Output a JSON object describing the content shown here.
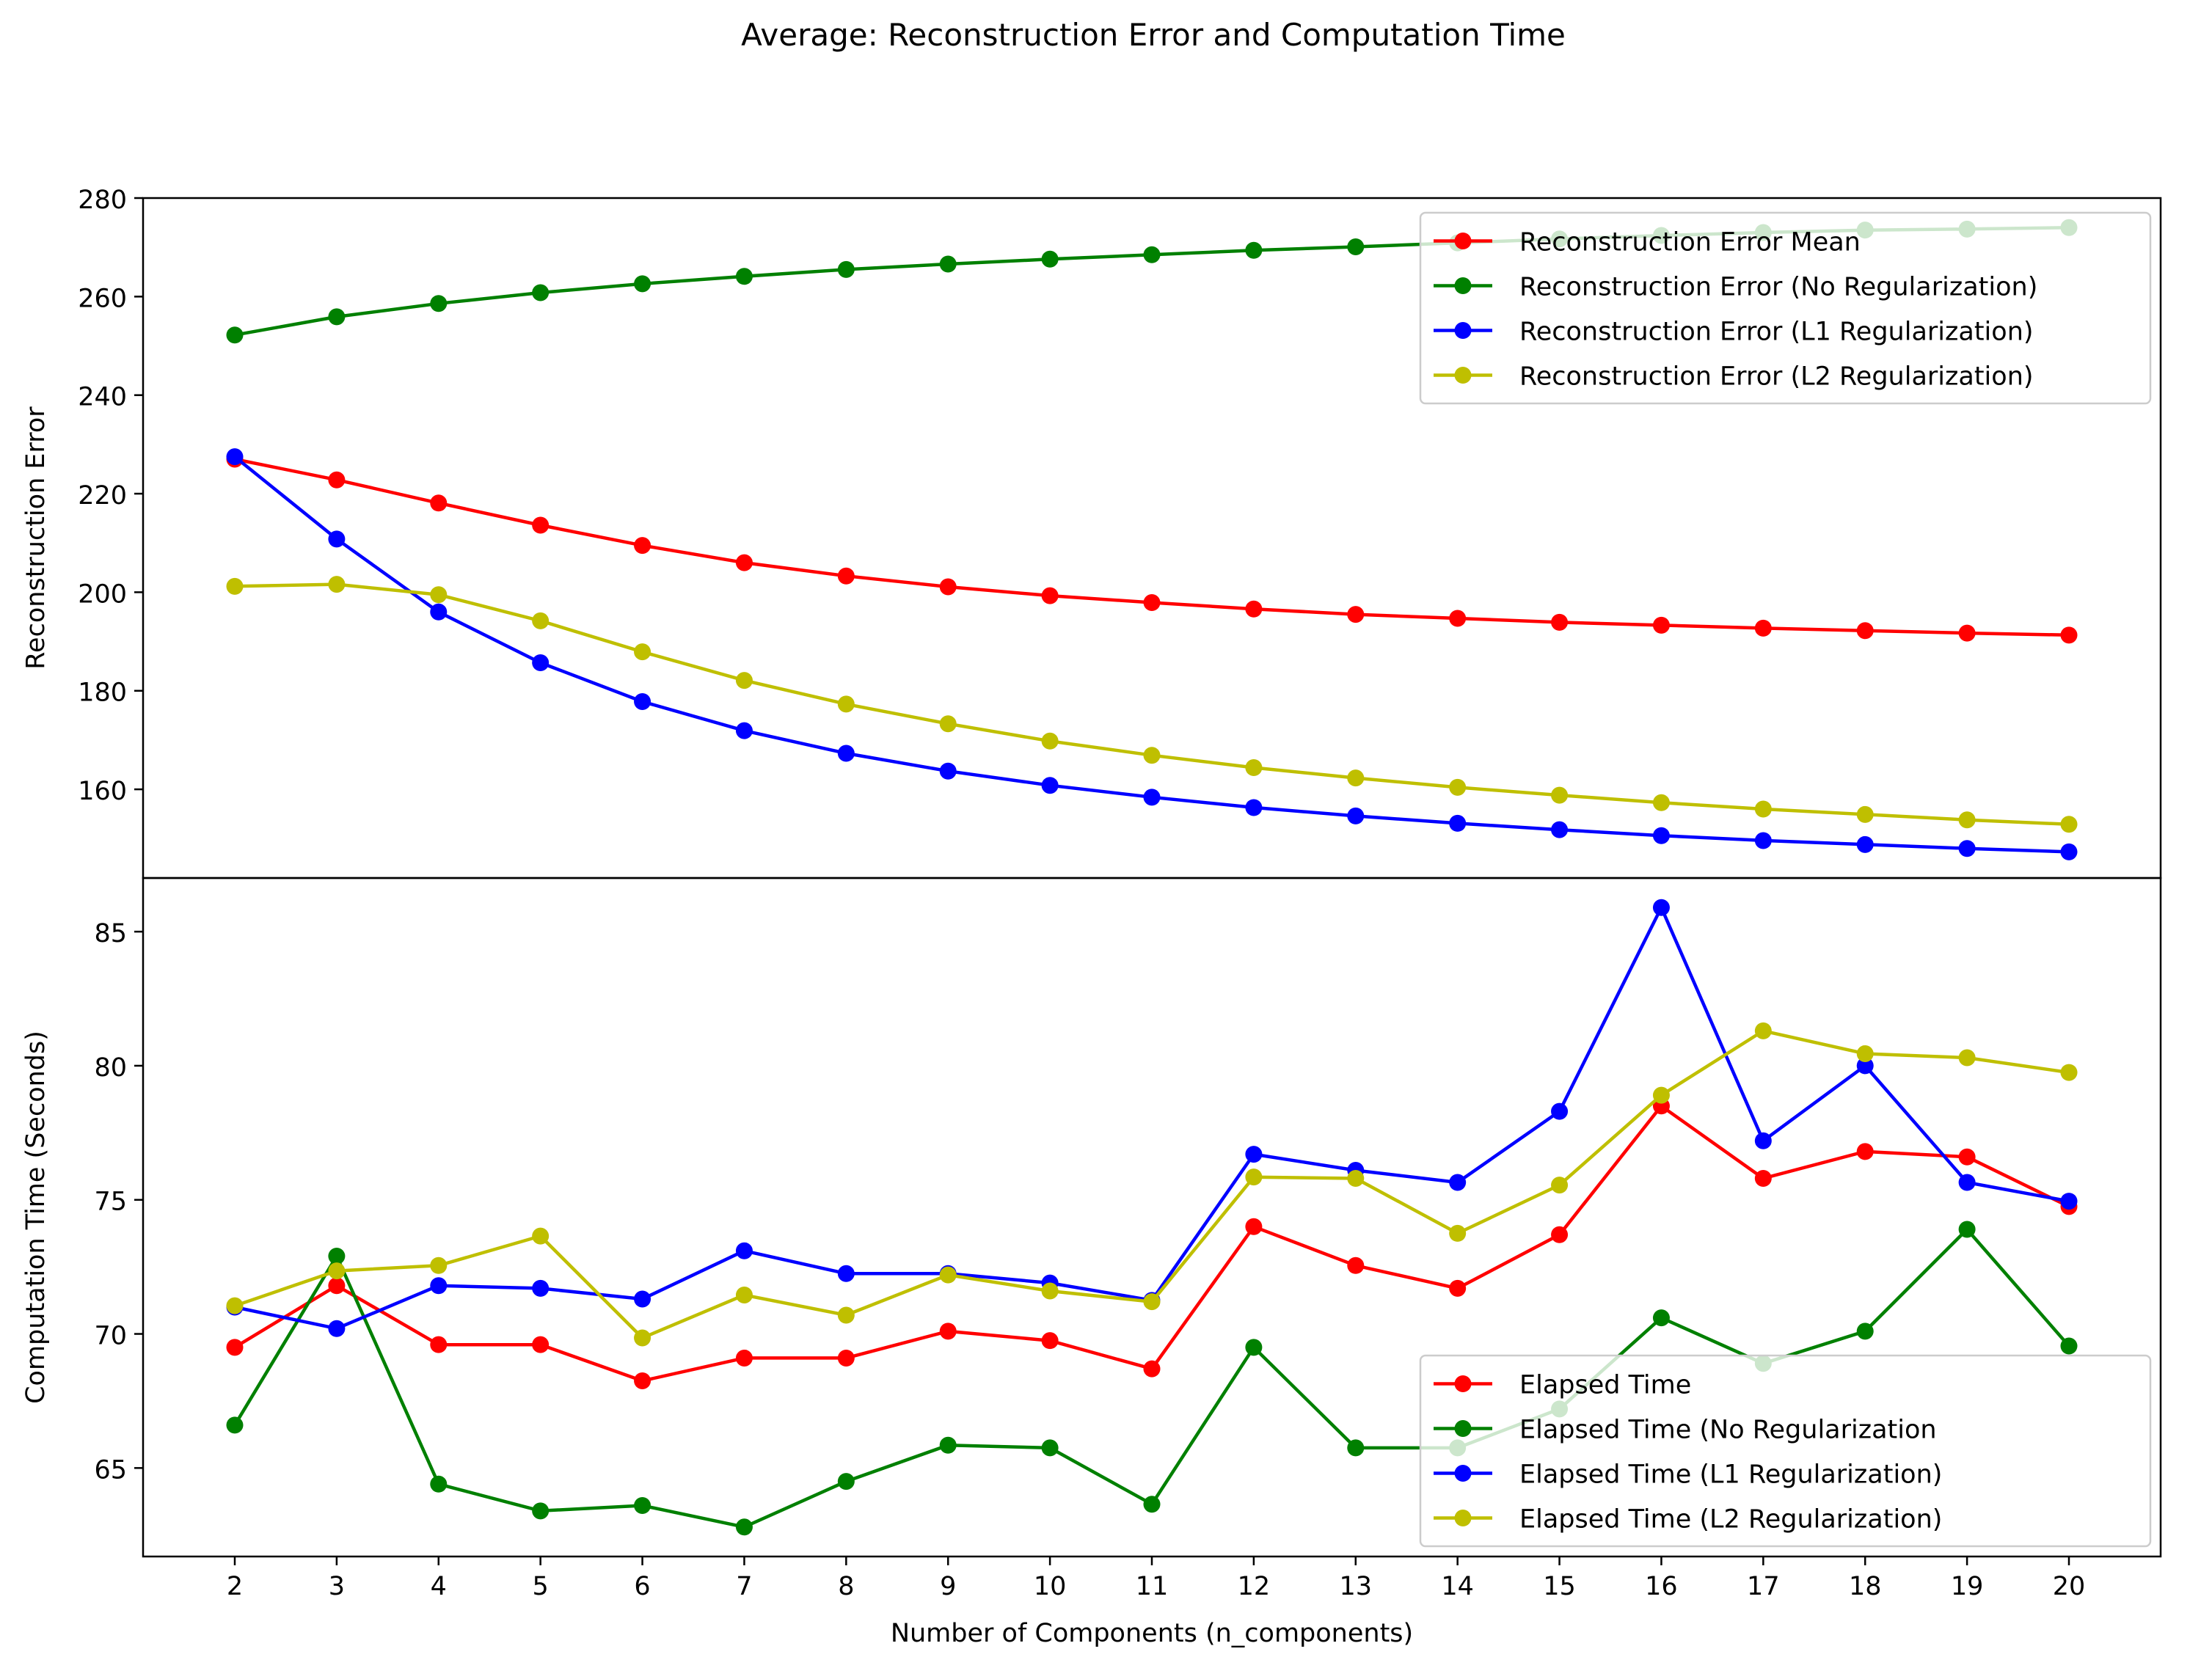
{
  "figure": {
    "suptitle": "Average: Reconstruction Error and Computation Time"
  },
  "chart_data": [
    {
      "type": "line",
      "title": "",
      "xlabel": "",
      "ylabel": "Reconstruction Error",
      "ylim": [
        142,
        280
      ],
      "yticks": [
        160,
        180,
        200,
        220,
        240,
        260,
        280
      ],
      "x": [
        2,
        3,
        4,
        5,
        6,
        7,
        8,
        9,
        10,
        11,
        12,
        13,
        14,
        15,
        16,
        17,
        18,
        19,
        20
      ],
      "grid": false,
      "legend_location": "upper right",
      "series": [
        {
          "name": "Reconstruction Error Mean",
          "color": "#ff0000",
          "values": [
            227,
            222.8,
            218.1,
            213.6,
            209.5,
            206.0,
            203.3,
            201.1,
            199.3,
            197.9,
            196.6,
            195.5,
            194.7,
            193.9,
            193.3,
            192.7,
            192.2,
            191.7,
            191.3
          ]
        },
        {
          "name": "Reconstruction Error (No Regularization)",
          "color": "#008000",
          "values": [
            252.2,
            255.9,
            258.6,
            260.8,
            262.6,
            264.1,
            265.5,
            266.6,
            267.6,
            268.5,
            269.4,
            270.1,
            270.9,
            271.7,
            272.4,
            273.0,
            273.5,
            273.7,
            274.0
          ]
        },
        {
          "name": "Reconstruction Error (L1 Regularization)",
          "color": "#0000ff",
          "values": [
            227.5,
            210.8,
            196.0,
            185.7,
            177.8,
            171.9,
            167.3,
            163.7,
            160.8,
            158.4,
            156.3,
            154.6,
            153.1,
            151.8,
            150.6,
            149.6,
            148.8,
            148.0,
            147.3
          ]
        },
        {
          "name": "Reconstruction Error (L2 Regularization)",
          "color": "#bfbf00",
          "values": [
            201.2,
            201.6,
            199.5,
            194.2,
            187.9,
            182.1,
            177.3,
            173.3,
            169.8,
            166.9,
            164.4,
            162.3,
            160.4,
            158.8,
            157.3,
            156.0,
            154.9,
            153.8,
            152.9
          ]
        }
      ]
    },
    {
      "type": "line",
      "title": "",
      "xlabel": "Number of Components (n_components)",
      "ylabel": "Computation Time (Seconds)",
      "ylim": [
        61.7,
        87.0
      ],
      "yticks": [
        65,
        70,
        75,
        80,
        85
      ],
      "x": [
        2,
        3,
        4,
        5,
        6,
        7,
        8,
        9,
        10,
        11,
        12,
        13,
        14,
        15,
        16,
        17,
        18,
        19,
        20
      ],
      "grid": false,
      "legend_location": "lower right",
      "series": [
        {
          "name": "Elapsed Time",
          "color": "#ff0000",
          "values": [
            69.5,
            71.8,
            69.6,
            69.6,
            68.25,
            69.1,
            69.1,
            70.1,
            69.75,
            68.7,
            74.0,
            72.55,
            71.7,
            73.7,
            78.5,
            75.8,
            76.8,
            76.6,
            74.75
          ]
        },
        {
          "name": "Elapsed Time (No Regularization",
          "color": "#008000",
          "values": [
            66.6,
            72.9,
            64.4,
            63.4,
            63.6,
            62.8,
            64.5,
            65.85,
            65.75,
            63.65,
            69.5,
            65.75,
            65.75,
            67.2,
            70.6,
            68.9,
            70.1,
            73.9,
            69.55
          ]
        },
        {
          "name": "Elapsed Time (L1 Regularization)",
          "color": "#0000ff",
          "values": [
            71.0,
            70.2,
            71.8,
            71.7,
            71.3,
            73.1,
            72.25,
            72.25,
            71.9,
            71.25,
            76.7,
            76.1,
            75.65,
            78.3,
            85.9,
            77.2,
            80.0,
            75.65,
            74.95
          ]
        },
        {
          "name": "Elapsed Time (L2 Regularization)",
          "color": "#bfbf00",
          "values": [
            71.05,
            72.35,
            72.55,
            73.65,
            69.85,
            71.45,
            70.7,
            72.2,
            71.6,
            71.2,
            75.85,
            75.8,
            73.75,
            75.55,
            78.9,
            81.3,
            80.45,
            80.3,
            79.75
          ]
        }
      ]
    }
  ]
}
